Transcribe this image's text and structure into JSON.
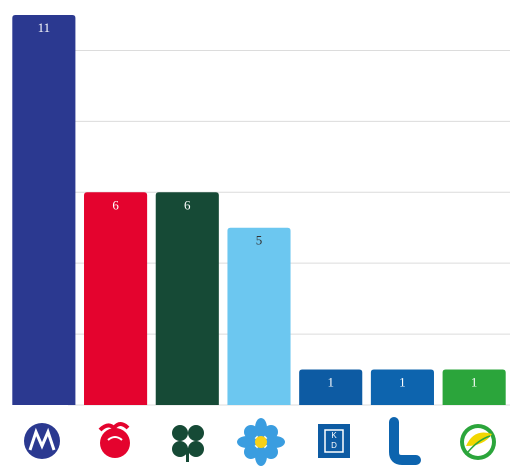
{
  "chart_data": {
    "type": "bar",
    "categories": [
      null,
      null,
      null,
      null,
      null,
      null,
      null
    ],
    "values": [
      11,
      6,
      6,
      5,
      1,
      1,
      1
    ],
    "colors": [
      "#2b3990",
      "#e4032e",
      "#164a36",
      "#6cc7f0",
      "#0d5ba3",
      "#0d64ae",
      "#2ba53b"
    ],
    "ylim": [
      0,
      11
    ],
    "yticks": [
      0,
      2,
      4,
      6,
      8,
      10
    ],
    "grid": true
  }
}
